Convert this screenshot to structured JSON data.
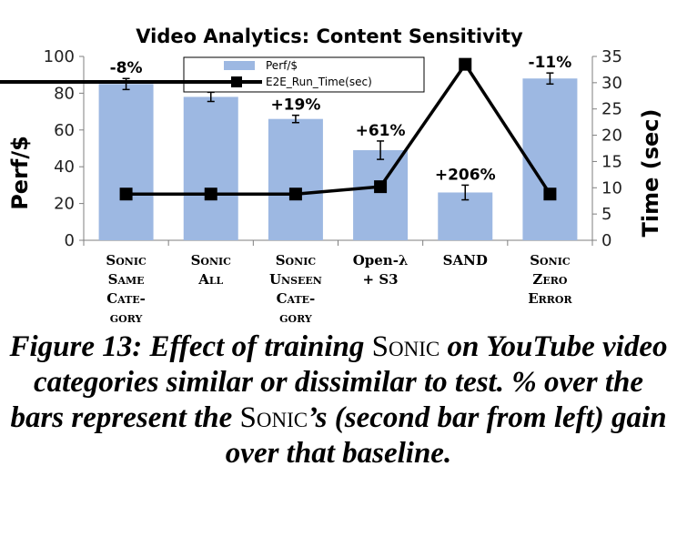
{
  "chart_data": {
    "type": "bar",
    "title": "Video Analytics: Content Sensitivity",
    "ylabel": "Perf/$",
    "y2label": "Time (sec)",
    "ylim": [
      0,
      100
    ],
    "y2lim": [
      0,
      35
    ],
    "yticks": [
      "0",
      "20",
      "40",
      "60",
      "80",
      "100"
    ],
    "y2ticks": [
      "0",
      "5",
      "10",
      "15",
      "20",
      "25",
      "30",
      "35"
    ],
    "categories": [
      [
        "Sonic",
        "Same",
        "Cate-",
        "gory"
      ],
      [
        "Sonic",
        "All"
      ],
      [
        "Sonic",
        "Unseen",
        "Cate-",
        "gory"
      ],
      [
        "Open-λ",
        "+ S3"
      ],
      [
        "SAND"
      ],
      [
        "Sonic",
        "Zero",
        "Error"
      ]
    ],
    "series": [
      {
        "name": "Perf/$",
        "type": "bar",
        "axis": "left",
        "color": "#9db8e2",
        "values": [
          85,
          78,
          66,
          49,
          26,
          88
        ],
        "errors": [
          3,
          2.5,
          2,
          5,
          4,
          3
        ],
        "labels": [
          "-8%",
          "",
          "+19%",
          "+61%",
          "+206%",
          "-11%"
        ]
      },
      {
        "name": "E2E_Run_Time(sec)",
        "type": "line",
        "axis": "right",
        "color": "#000000",
        "values": [
          8.8,
          8.8,
          8.8,
          10.2,
          33.5,
          8.8
        ]
      }
    ],
    "legend": "top-left",
    "grid": false
  },
  "caption": {
    "part1": "Figure 13: Effect of training ",
    "sonic1": "Sonic",
    "part2": " on YouTube video categories similar or dissimilar to test. % over the bars represent the ",
    "sonic2": "Sonic",
    "part3": "’s (second bar from left) gain over that baseline."
  }
}
